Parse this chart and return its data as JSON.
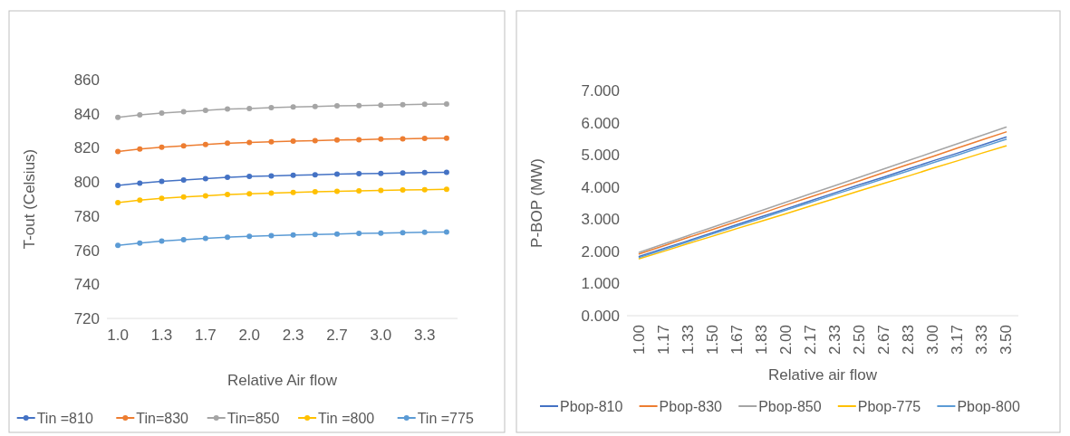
{
  "chart_data": [
    {
      "type": "line",
      "xlabel": "Relative Air flow",
      "ylabel": "T-out (Celsius)",
      "categories": [
        "1.0",
        null,
        "1.3",
        null,
        "1.7",
        null,
        "2.0",
        null,
        "2.3",
        null,
        "2.7",
        null,
        "3.0",
        null,
        "3.3",
        null
      ],
      "ylim": [
        720,
        860
      ],
      "yticks": [
        720,
        740,
        760,
        780,
        800,
        820,
        840,
        860
      ],
      "grid": false,
      "legend": "bottom",
      "marker": "circle",
      "series": [
        {
          "name": "Tin =810",
          "color": "#4472c4",
          "values": [
            797.9,
            799.3,
            800.4,
            801.2,
            801.9,
            802.7,
            803.2,
            803.5,
            803.9,
            804.2,
            804.6,
            804.8,
            805.0,
            805.3,
            805.5,
            805.7
          ]
        },
        {
          "name": "Tin=830",
          "color": "#ed7d31",
          "values": [
            817.9,
            819.3,
            820.4,
            821.2,
            821.9,
            822.7,
            823.2,
            823.5,
            823.9,
            824.2,
            824.6,
            824.8,
            825.1,
            825.3,
            825.5,
            825.7
          ]
        },
        {
          "name": "Tin=850",
          "color": "#a5a5a5",
          "values": [
            837.9,
            839.3,
            840.4,
            841.2,
            842.0,
            842.7,
            843.0,
            843.6,
            843.9,
            844.2,
            844.6,
            844.8,
            845.0,
            845.3,
            845.5,
            845.7
          ]
        },
        {
          "name": "Tin =800",
          "color": "#ffc000",
          "values": [
            787.9,
            789.3,
            790.4,
            791.2,
            791.9,
            792.6,
            793.1,
            793.5,
            793.9,
            794.2,
            794.5,
            794.8,
            795.0,
            795.3,
            795.5,
            795.7
          ]
        },
        {
          "name": "Tin =775",
          "color": "#5b9bd5",
          "values": [
            762.8,
            764.2,
            765.3,
            766.2,
            766.9,
            767.6,
            768.1,
            768.5,
            768.9,
            769.2,
            769.5,
            769.8,
            770.0,
            770.3,
            770.5,
            770.6
          ]
        }
      ]
    },
    {
      "type": "line",
      "xlabel": "Relative air flow",
      "ylabel": "P-BOP (MW)",
      "categories": [
        "1.00",
        "1.17",
        "1.33",
        "1.50",
        "1.67",
        "1.83",
        "2.00",
        "2.17",
        "2.33",
        "2.50",
        "2.67",
        "2.83",
        "3.00",
        "3.17",
        "3.33",
        "3.50"
      ],
      "ylim": [
        0,
        7
      ],
      "yticks": [
        {
          "value": 0,
          "label": "0.000"
        },
        {
          "value": 1,
          "label": "1.000"
        },
        {
          "value": 2,
          "label": "2.000"
        },
        {
          "value": 3,
          "label": "3.000"
        },
        {
          "value": 4,
          "label": "4.000"
        },
        {
          "value": 5,
          "label": "5.000"
        },
        {
          "value": 6,
          "label": "6.000"
        },
        {
          "value": 7,
          "label": "7.000"
        }
      ],
      "grid": false,
      "legend": "bottom",
      "marker": "none",
      "series": [
        {
          "name": "Pbop-810",
          "color": "#4472c4",
          "values": [
            1.84,
            2.09,
            2.33,
            2.58,
            2.83,
            3.08,
            3.32,
            3.57,
            3.82,
            4.07,
            4.31,
            4.56,
            4.81,
            5.05,
            5.3,
            5.55
          ]
        },
        {
          "name": "Pbop-830",
          "color": "#ed7d31",
          "values": [
            1.92,
            2.17,
            2.43,
            2.68,
            2.93,
            3.18,
            3.44,
            3.69,
            3.94,
            4.19,
            4.45,
            4.7,
            4.95,
            5.21,
            5.46,
            5.71
          ]
        },
        {
          "name": "Pbop-850",
          "color": "#a5a5a5",
          "values": [
            1.97,
            2.23,
            2.49,
            2.75,
            3.01,
            3.27,
            3.53,
            3.79,
            4.04,
            4.3,
            4.56,
            4.82,
            5.08,
            5.34,
            5.6,
            5.86
          ]
        },
        {
          "name": "Pbop-775",
          "color": "#ffc000",
          "values": [
            1.77,
            2.0,
            2.24,
            2.47,
            2.71,
            2.94,
            3.17,
            3.41,
            3.64,
            3.88,
            4.11,
            4.34,
            4.58,
            4.81,
            5.05,
            5.28
          ]
        },
        {
          "name": "Pbop-800",
          "color": "#5b9bd5",
          "values": [
            1.81,
            2.05,
            2.3,
            2.54,
            2.79,
            3.03,
            3.28,
            3.52,
            3.77,
            4.01,
            4.26,
            4.5,
            4.75,
            4.99,
            5.24,
            5.48
          ]
        }
      ]
    }
  ]
}
